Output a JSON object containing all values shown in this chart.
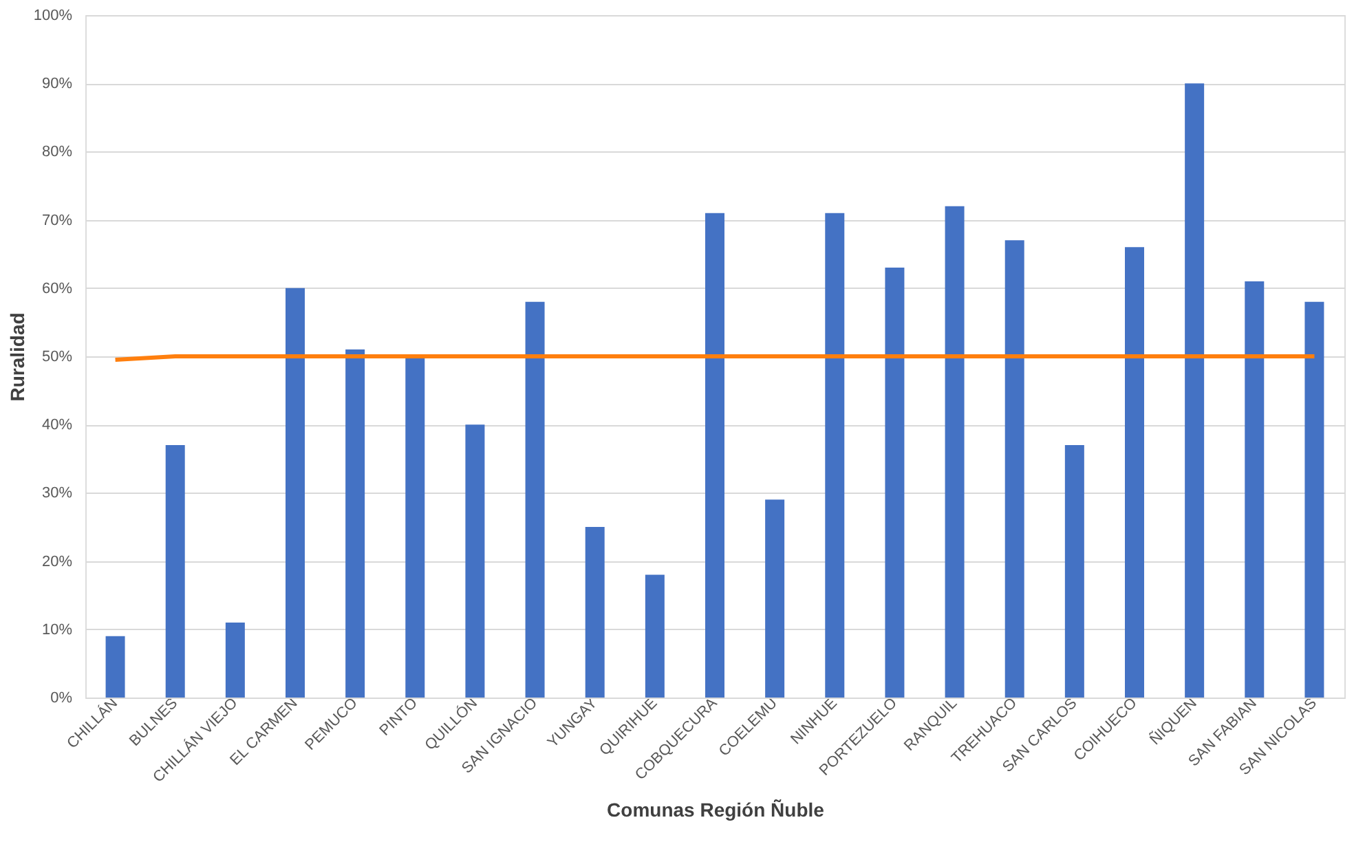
{
  "chart_data": {
    "type": "bar",
    "xlabel": "Comunas Región Ñuble",
    "ylabel": "Ruralidad",
    "categories": [
      "CHILLÁN",
      "BULNES",
      "CHILLÁN VIEJO",
      "EL CARMEN",
      "PEMUCO",
      "PINTO",
      "QUILLÓN",
      "SAN IGNACIO",
      "YUNGAY",
      "QUIRIHUE",
      "COBQUECURA",
      "COELEMU",
      "NINHUE",
      "PORTEZUELO",
      "RANQUIL",
      "TREHUACO",
      "SAN CARLOS",
      "COIHUECO",
      "ÑIQUEN",
      "SAN FABIAN",
      "SAN NICOLAS"
    ],
    "series": [
      {
        "color": "#4472c4",
        "values": [
          9,
          37,
          11,
          60,
          51,
          50,
          40,
          58,
          25,
          18,
          71,
          29,
          71,
          63,
          72,
          67,
          37,
          66,
          90,
          61,
          58
        ]
      },
      {
        "type": "line",
        "color": "#ff7f0e",
        "values": [
          49.5,
          50,
          50,
          50,
          50,
          50,
          50,
          50,
          50,
          50,
          50,
          50,
          50,
          50,
          50,
          50,
          50,
          50,
          50,
          50,
          50
        ]
      }
    ],
    "ylim": [
      0,
      100
    ],
    "yticks": [
      {
        "value": 0,
        "label": "0%"
      },
      {
        "value": 10,
        "label": "10%"
      },
      {
        "value": 20,
        "label": "20%"
      },
      {
        "value": 30,
        "label": "30%"
      },
      {
        "value": 40,
        "label": "40%"
      },
      {
        "value": 50,
        "label": "50%"
      },
      {
        "value": 60,
        "label": "60%"
      },
      {
        "value": 70,
        "label": "70%"
      },
      {
        "value": 80,
        "label": "80%"
      },
      {
        "value": 90,
        "label": "90%"
      },
      {
        "value": 100,
        "label": "100%"
      }
    ],
    "grid": "y",
    "legend": false
  }
}
